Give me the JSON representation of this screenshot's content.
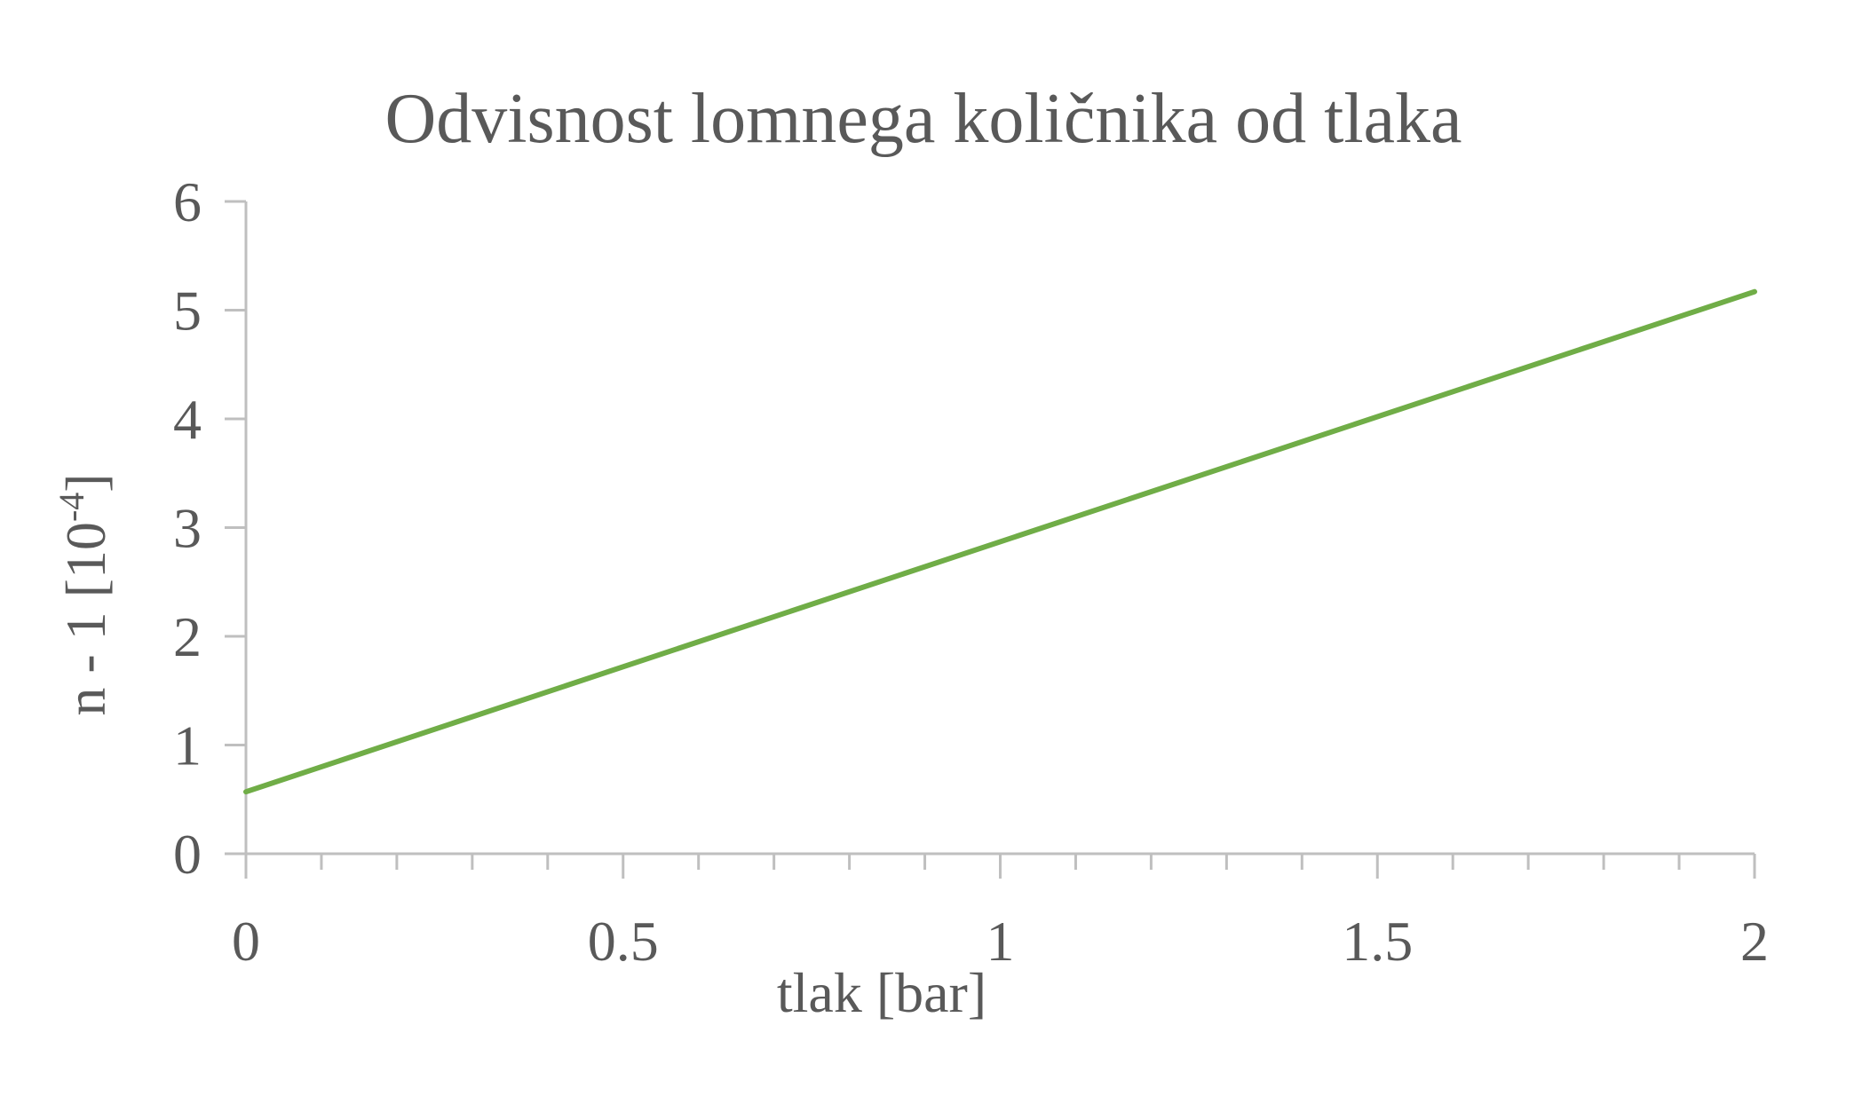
{
  "chart_data": {
    "type": "line",
    "title": "Odvisnost lomnega količnika od tlaka",
    "xlabel": "tlak [bar]",
    "ylabel_main": "n - 1 [10",
    "ylabel_sup": "-4",
    "ylabel_end": "]",
    "xlim": [
      0,
      2
    ],
    "ylim": [
      0,
      6
    ],
    "x_major_ticks": [
      0,
      0.5,
      1,
      1.5,
      2
    ],
    "x_tick_labels": [
      "0",
      "0.5",
      "1",
      "1.5",
      "2"
    ],
    "x_minor_step": 0.1,
    "y_ticks": [
      0,
      1,
      2,
      3,
      4,
      5,
      6
    ],
    "y_tick_labels": [
      "0",
      "1",
      "2",
      "3",
      "4",
      "5",
      "6"
    ],
    "grid": false,
    "legend": "none",
    "series": [
      {
        "x": [
          0,
          2
        ],
        "y": [
          0.57,
          5.17
        ],
        "color": "#70ad47"
      }
    ],
    "axis_color": "#bfbfbf",
    "text_color": "#595959"
  }
}
